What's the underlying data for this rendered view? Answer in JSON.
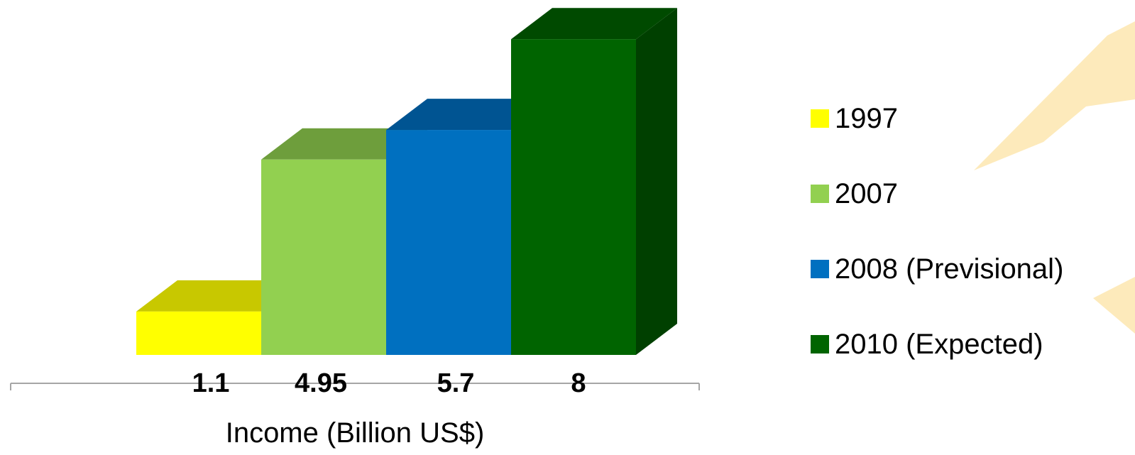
{
  "chart_data": {
    "type": "bar",
    "style": "3d-column",
    "categories": [
      ""
    ],
    "series": [
      {
        "name": "1997",
        "values": [
          1.1
        ],
        "color": "#FFFF00",
        "top_color": "#C8C800",
        "side_color": "#A9A900"
      },
      {
        "name": "2007",
        "values": [
          4.95
        ],
        "color": "#92D050",
        "top_color": "#6E9E3C",
        "side_color": "#5C8432"
      },
      {
        "name": "2008 (Previsional)",
        "values": [
          5.7
        ],
        "color": "#0070C0",
        "top_color": "#005492",
        "side_color": "#00477C"
      },
      {
        "name": "2010 (Expected)",
        "values": [
          8
        ],
        "color": "#006400",
        "top_color": "#004A00",
        "side_color": "#004000"
      }
    ],
    "data_labels": [
      "1.1",
      "4.95",
      "5.7",
      "8"
    ],
    "xlabel": "Income (Billion US$)",
    "ylabel": "",
    "ylim": [
      0,
      8
    ],
    "grid": false,
    "legend_position": "right"
  },
  "background": {
    "decoration": "faint-orange-airplane-watermark",
    "color": "#F9C23C"
  }
}
